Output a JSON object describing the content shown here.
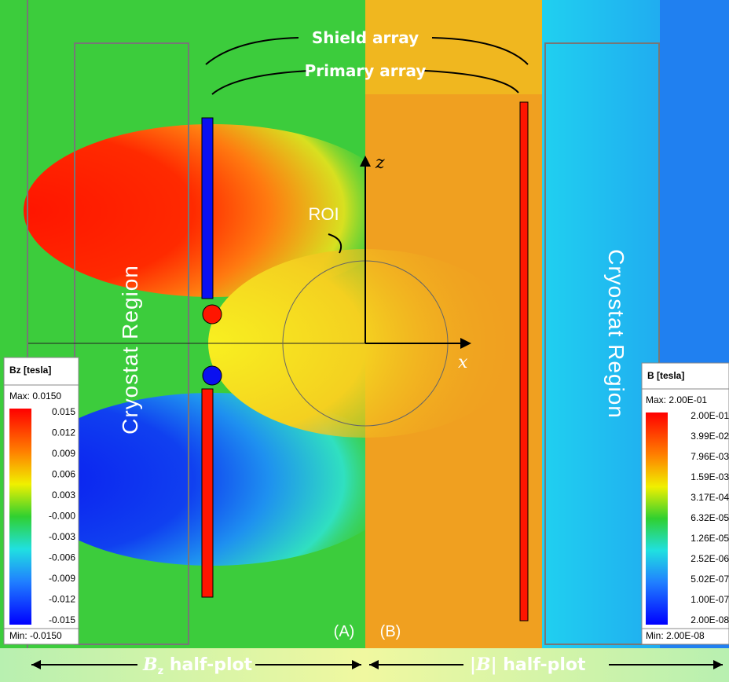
{
  "annotations": {
    "shield": "Shield array",
    "primary": "Primary array",
    "roi": "ROI",
    "z_axis": "z",
    "x_axis": "x",
    "left_region": "Cryostat  Region",
    "right_region": "Cryostat  Region",
    "panel_a": "(A)",
    "panel_b": "(B)",
    "left_caption": "B",
    "left_caption_sub": "z",
    "left_caption_rest": " half-plot",
    "right_caption": "|B|",
    "right_caption_rest": " half-plot"
  },
  "left_legend": {
    "title": "Bz [tesla]",
    "max": "Max: 0.0150",
    "min": "Min: -0.0150",
    "labels": [
      "0.015",
      "0.012",
      "0.009",
      "0.006",
      "0.003",
      "-0.000",
      "-0.003",
      "-0.006",
      "-0.009",
      "-0.012",
      "-0.015"
    ]
  },
  "right_legend": {
    "title": "B [tesla]",
    "max": "Max: 2.00E-01",
    "min": "Min: 2.00E-08",
    "labels": [
      "2.00E-01",
      "3.99E-02",
      "7.96E-03",
      "1.59E-03",
      "3.17E-04",
      "6.32E-05",
      "1.26E-05",
      "2.52E-06",
      "5.02E-07",
      "1.00E-07",
      "2.00E-08"
    ]
  }
}
